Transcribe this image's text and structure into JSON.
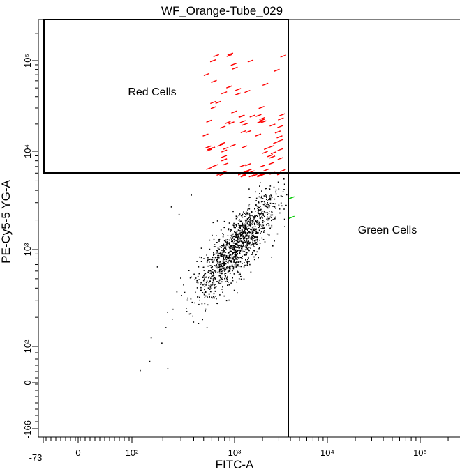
{
  "chart_data": {
    "type": "scatter",
    "title": "WF_Orange-Tube_029",
    "xlabel": "FITC-A",
    "ylabel": "PE-Cy5-5 YG-A",
    "x_scale": "biexponential",
    "y_scale": "biexponential",
    "x_tick_labels": [
      "-73",
      "0",
      "10²",
      "10³",
      "10⁴",
      "10⁵"
    ],
    "y_tick_labels": [
      "-166",
      "0",
      "10²",
      "10³",
      "10⁴",
      "10⁵"
    ],
    "gates": [
      {
        "name": "Red Cells",
        "x_range": [
          "min",
          3800
        ],
        "y_range": [
          6200,
          "max"
        ],
        "color": "#ff0000"
      },
      {
        "name": "Green Cells",
        "x_range": [
          3800,
          "max"
        ],
        "y_range": [
          "min",
          6200
        ],
        "color": "#00cc00"
      }
    ],
    "series": [
      {
        "name": "",
        "color": "#000000",
        "n_points": 1250,
        "center": [
          1200,
          1200
        ],
        "note": "main cluster of ungated events"
      },
      {
        "name": "Red Cells",
        "color": "#ff0000",
        "n_points": 95
      },
      {
        "name": "Green Cells",
        "color": "#00cc00",
        "n_points": 2
      }
    ],
    "grid": false,
    "legend": "none"
  },
  "colors": {
    "red_events": "#ff0000",
    "green_events": "#00cc00",
    "other_events": "#000000",
    "gate_lines": "#000000"
  }
}
